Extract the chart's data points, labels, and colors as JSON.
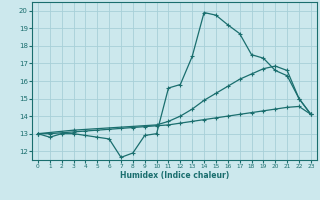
{
  "xlabel": "Humidex (Indice chaleur)",
  "xlim": [
    -0.5,
    23.5
  ],
  "ylim": [
    11.5,
    20.5
  ],
  "yticks": [
    12,
    13,
    14,
    15,
    16,
    17,
    18,
    19,
    20
  ],
  "xticks": [
    0,
    1,
    2,
    3,
    4,
    5,
    6,
    7,
    8,
    9,
    10,
    11,
    12,
    13,
    14,
    15,
    16,
    17,
    18,
    19,
    20,
    21,
    22,
    23
  ],
  "bg_color": "#cce8ed",
  "grid_color": "#a8d0d8",
  "line_color": "#1a6e6e",
  "line1_x": [
    0,
    1,
    2,
    3,
    4,
    5,
    6,
    7,
    8,
    9,
    10,
    11,
    12,
    13,
    14,
    15,
    16,
    17,
    18,
    19,
    20,
    21,
    22,
    23
  ],
  "line1_y": [
    13.0,
    12.8,
    13.0,
    13.0,
    12.9,
    12.8,
    12.7,
    11.65,
    11.9,
    12.9,
    13.0,
    15.6,
    15.8,
    17.4,
    19.9,
    19.75,
    19.2,
    18.7,
    17.5,
    17.3,
    16.6,
    16.3,
    15.0,
    14.1
  ],
  "line2_x": [
    0,
    3,
    10,
    11,
    12,
    13,
    14,
    15,
    16,
    17,
    18,
    19,
    20,
    21,
    22,
    23
  ],
  "line2_y": [
    13.0,
    13.2,
    13.5,
    13.7,
    14.0,
    14.4,
    14.9,
    15.3,
    15.7,
    16.1,
    16.4,
    16.7,
    16.85,
    16.6,
    15.0,
    14.1
  ],
  "line3_x": [
    0,
    1,
    2,
    3,
    4,
    5,
    6,
    7,
    8,
    9,
    10,
    11,
    12,
    13,
    14,
    15,
    16,
    17,
    18,
    19,
    20,
    21,
    22,
    23
  ],
  "line3_y": [
    13.0,
    13.0,
    13.05,
    13.1,
    13.15,
    13.2,
    13.25,
    13.3,
    13.35,
    13.4,
    13.45,
    13.5,
    13.6,
    13.7,
    13.8,
    13.9,
    14.0,
    14.1,
    14.2,
    14.3,
    14.4,
    14.5,
    14.55,
    14.1
  ]
}
